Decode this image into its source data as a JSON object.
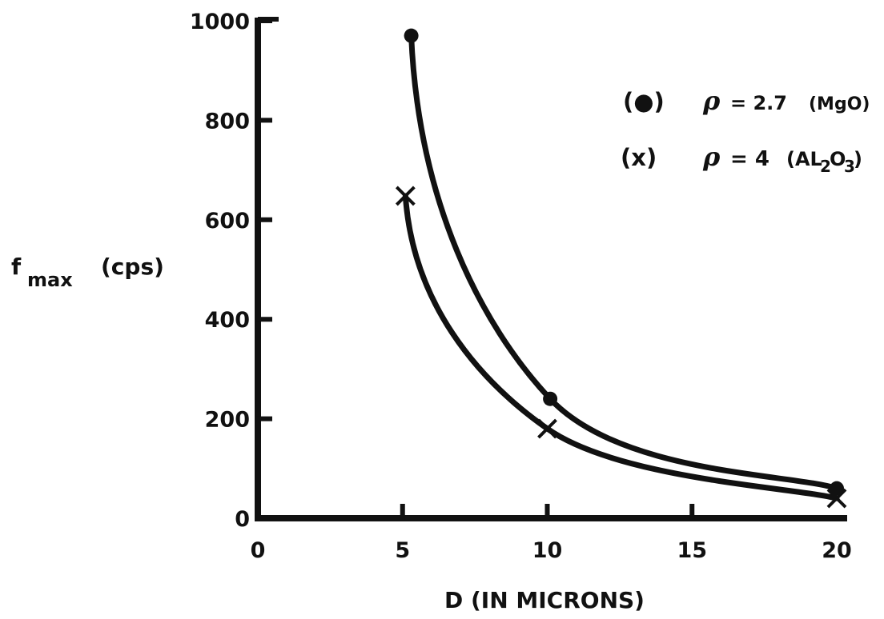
{
  "chart_data": {
    "type": "line",
    "title": "",
    "xlabel": "D (IN MICRONS)",
    "ylabel": "f",
    "ylabel_sub": "max",
    "ylabel_unit": "(cps)",
    "xlim": [
      0,
      20
    ],
    "ylim": [
      0,
      1000
    ],
    "xticks": [
      0,
      5,
      10,
      15,
      20
    ],
    "yticks": [
      0,
      200,
      400,
      600,
      800,
      1000
    ],
    "grid": false,
    "legend_placement": "top-right",
    "series": [
      {
        "marker": "circle",
        "color": "#111111",
        "legend_symbol": "(●)",
        "legend_rho": "ρ",
        "legend_eq": "= 2.7",
        "legend_material": "(MgO)",
        "points": [
          [
            5.3,
            970
          ],
          [
            10.1,
            240
          ],
          [
            20,
            60
          ]
        ]
      },
      {
        "marker": "x",
        "color": "#111111",
        "legend_symbol": "(x)",
        "legend_rho": "ρ",
        "legend_eq": "= 4",
        "legend_material_open": "(AL",
        "legend_material_sub1": "2",
        "legend_material_mid": "O",
        "legend_material_sub2": "3",
        "legend_material_close": ")",
        "points": [
          [
            5.1,
            648
          ],
          [
            10.0,
            180
          ],
          [
            20,
            40
          ]
        ]
      }
    ]
  }
}
